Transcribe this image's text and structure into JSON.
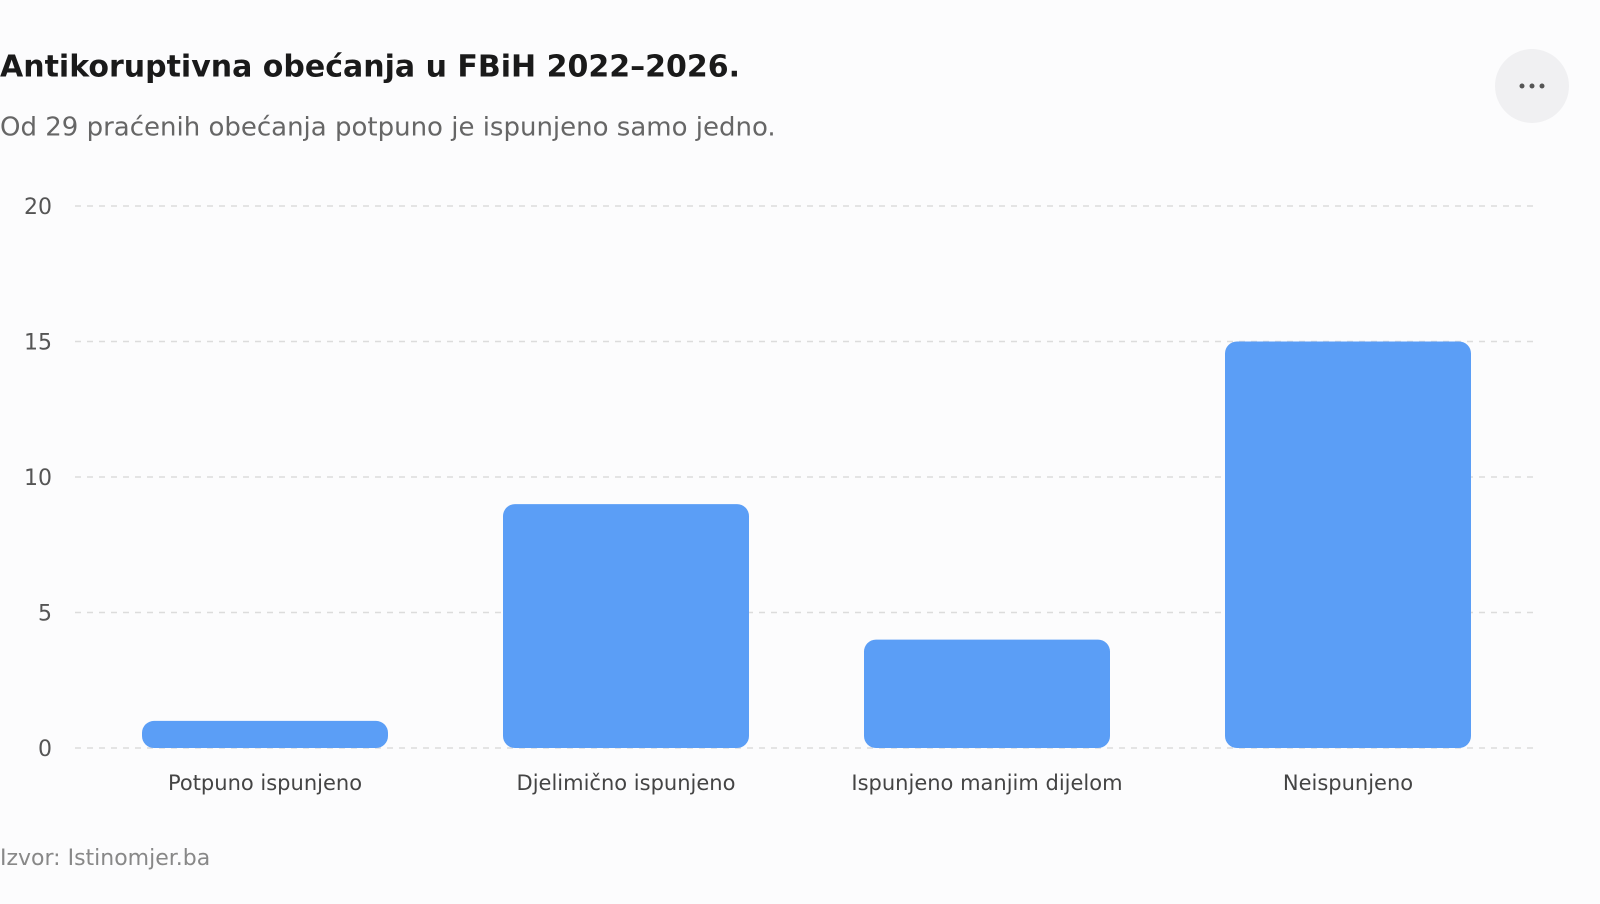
{
  "chart_data": {
    "type": "bar",
    "title": "Antikoruptivna obećanja u FBiH 2022–2026.",
    "subtitle": "Od 29 praćenih obećanja potpuno je ispunjeno samo jedno.",
    "source": "Izvor: Istinomjer.ba",
    "categories": [
      "Potpuno ispunjeno",
      "Djelimično ispunjeno",
      "Ispunjeno manjim dijelom",
      "Neispunjeno"
    ],
    "values": [
      1,
      9,
      4,
      15
    ],
    "color": "#5b9ef6",
    "ylim": [
      0,
      20
    ],
    "yticks": [
      0,
      5,
      10,
      15,
      20
    ],
    "grid": true
  }
}
